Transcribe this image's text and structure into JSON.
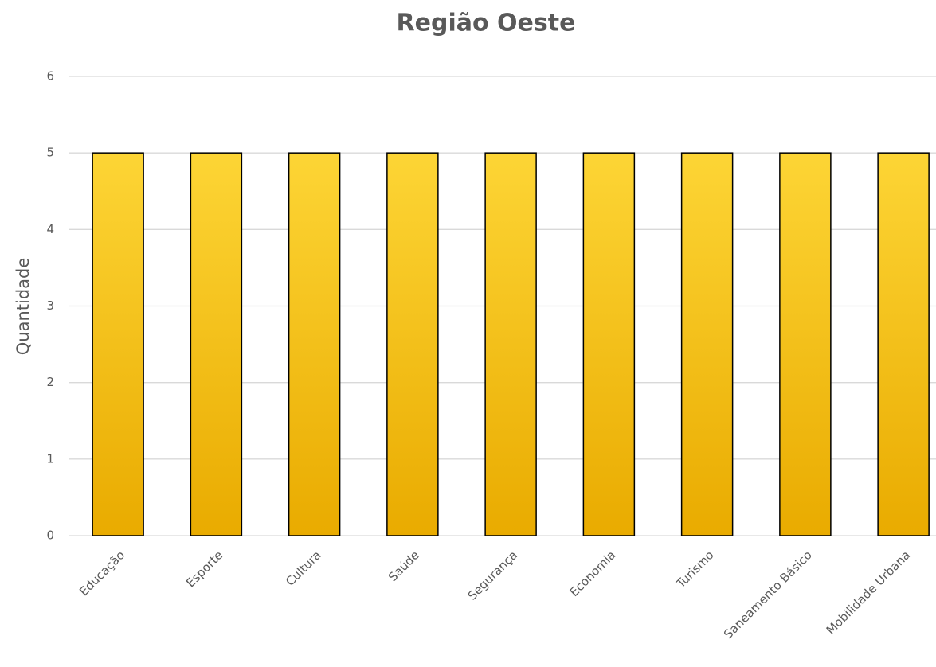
{
  "chart_data": {
    "type": "bar",
    "title": "Região Oeste",
    "y_label": "Quantidade",
    "categories": [
      "Educação",
      "Esporte",
      "Cultura",
      "Saúde",
      "Segurança",
      "Economia",
      "Turismo",
      "Saneamento Básico",
      "Mobilidade Urbana"
    ],
    "values": [
      5,
      5,
      5,
      5,
      5,
      5,
      5,
      5,
      5
    ],
    "color": "#e9ab00",
    "ylim": [
      0,
      6
    ],
    "yticks": [
      0,
      1,
      2,
      3,
      4,
      5,
      6
    ],
    "grid": true
  }
}
